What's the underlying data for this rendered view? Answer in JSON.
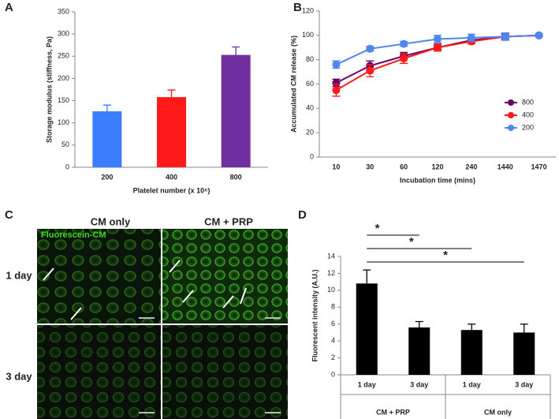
{
  "panel_labels": [
    "A",
    "B",
    "C",
    "D"
  ],
  "chart_data": [
    {
      "type": "bar",
      "ylabel": "Storage modulus (stiffness, Pa)",
      "xlabel": "Platelet number (x 10⁶)",
      "categories": [
        "200",
        "400",
        "800"
      ],
      "values": [
        126,
        158,
        253
      ],
      "errors": [
        14,
        16,
        18
      ],
      "colors": [
        "#3a7dff",
        "#ff1a1a",
        "#7030a0"
      ],
      "ylim": [
        0,
        350
      ],
      "yticks": [
        0,
        50,
        100,
        150,
        200,
        250,
        300,
        350
      ]
    },
    {
      "type": "line",
      "ylabel": "Accumulated CM release (%)",
      "xlabel": "Incubation time (mins)",
      "categories": [
        "10",
        "30",
        "60",
        "120",
        "240",
        "1440",
        "1470"
      ],
      "series": [
        {
          "name": "800",
          "color": "#660066",
          "values": [
            61,
            75,
            83,
            90,
            96,
            99,
            100
          ],
          "errors": [
            3,
            4,
            3,
            2,
            2,
            2,
            1
          ]
        },
        {
          "name": "400",
          "color": "#ff1a1a",
          "values": [
            55,
            71,
            81,
            90,
            95,
            99,
            100
          ],
          "errors": [
            5,
            5,
            4,
            3,
            2,
            3,
            1
          ]
        },
        {
          "name": "200",
          "color": "#4f86f0",
          "values": [
            76,
            89,
            93,
            97,
            98,
            99,
            100
          ],
          "errors": [
            3,
            2,
            2,
            3,
            3,
            3,
            1
          ]
        }
      ],
      "ylim": [
        0,
        120
      ],
      "yticks": [
        0,
        20,
        40,
        60,
        80,
        100,
        120
      ]
    },
    {
      "type": "bar",
      "ylabel": "Fluorescent intensity (A.U.)",
      "categories": [
        "1 day",
        "3 day",
        "1 day",
        "3 day"
      ],
      "values": [
        10.8,
        5.6,
        5.3,
        5.0
      ],
      "errors": [
        1.6,
        0.7,
        0.7,
        1.0
      ],
      "color": "#000000",
      "groups": [
        {
          "name": "CM + PRP",
          "categories": [
            0,
            1
          ]
        },
        {
          "name": "CM only",
          "categories": [
            2,
            3
          ]
        }
      ],
      "significance": [
        {
          "from": 0,
          "to": 1,
          "label": "*"
        },
        {
          "from": 0,
          "to": 2,
          "label": "*"
        },
        {
          "from": 0,
          "to": 3,
          "label": "*"
        }
      ],
      "ylim": [
        0,
        14
      ],
      "yticks": [
        0,
        2,
        4,
        6,
        8,
        10,
        12,
        14
      ]
    }
  ],
  "panel_c": {
    "columns": [
      "CM only",
      "CM + PRP"
    ],
    "rows": [
      "1 day",
      "3 day"
    ],
    "stain_label": "Fluorescein-CM"
  }
}
